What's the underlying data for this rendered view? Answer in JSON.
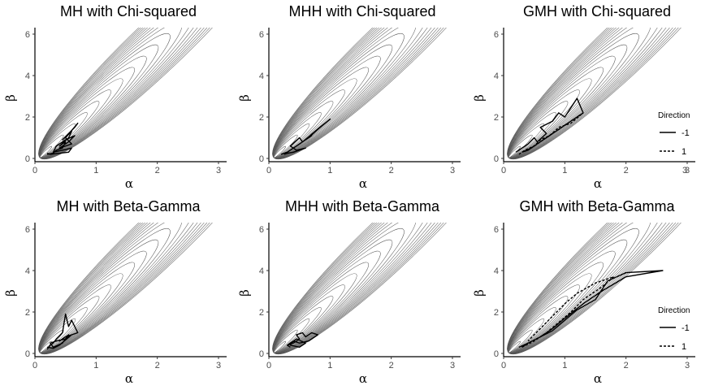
{
  "figure": {
    "legend_title": "Direction",
    "extra_label": "3"
  },
  "chart_data": [
    {
      "type": "line",
      "title": "MH with Chi-squared",
      "xlabel": "α",
      "ylabel": "β",
      "xlim": [
        0,
        3
      ],
      "ylim": [
        0,
        6
      ],
      "xticks": [
        "0",
        "1",
        "2",
        "3"
      ],
      "yticks": [
        "0",
        "2",
        "4",
        "6"
      ],
      "legend": null,
      "series": [
        {
          "direction": "-1",
          "style": "solid",
          "x": [
            0.2,
            0.3,
            0.35,
            0.45,
            0.5,
            0.4,
            0.55,
            0.6,
            0.45,
            0.65,
            0.7,
            0.5,
            0.6,
            0.4,
            0.55,
            0.65,
            0.5,
            0.35,
            0.3,
            0.45,
            0.6,
            0.55,
            0.25,
            0.2
          ],
          "y": [
            0.2,
            0.25,
            0.4,
            0.5,
            0.8,
            0.6,
            1.0,
            1.3,
            0.9,
            1.5,
            1.7,
            1.0,
            0.7,
            0.5,
            0.8,
            1.1,
            0.9,
            0.6,
            0.3,
            0.4,
            0.5,
            0.3,
            0.2,
            0.25
          ]
        }
      ]
    },
    {
      "type": "line",
      "title": "MHH with Chi-squared",
      "xlabel": "α",
      "ylabel": "β",
      "xlim": [
        0,
        3
      ],
      "ylim": [
        0,
        6
      ],
      "xticks": [
        "0",
        "1",
        "2",
        "3"
      ],
      "yticks": [
        "0",
        "2",
        "4",
        "6"
      ],
      "legend": null,
      "series": [
        {
          "direction": "-1",
          "style": "solid",
          "x": [
            0.2,
            0.3,
            0.4,
            0.5,
            0.45,
            0.6,
            0.7,
            0.65,
            0.8,
            1.0,
            0.75,
            0.55,
            0.5,
            0.35,
            0.45,
            0.6,
            0.4,
            0.3,
            0.25
          ],
          "y": [
            0.2,
            0.3,
            0.5,
            0.7,
            0.6,
            0.9,
            1.1,
            1.0,
            1.4,
            1.9,
            1.3,
            0.8,
            1.0,
            0.6,
            0.4,
            0.5,
            0.3,
            0.25,
            0.2
          ]
        }
      ]
    },
    {
      "type": "line",
      "title": "GMH with Chi-squared",
      "xlabel": "α",
      "ylabel": "β",
      "xlim": [
        0,
        3
      ],
      "ylim": [
        0,
        6
      ],
      "xticks": [
        "0",
        "1",
        "2",
        "3"
      ],
      "yticks": [
        "0",
        "2",
        "4",
        "6"
      ],
      "legend": {
        "title": "Direction",
        "entries": [
          "-1",
          "1"
        ]
      },
      "series": [
        {
          "direction": "-1",
          "style": "solid",
          "x": [
            0.2,
            0.3,
            0.4,
            0.5,
            0.55,
            0.7,
            0.6,
            0.8,
            0.9,
            1.0,
            1.2,
            1.3,
            1.1,
            0.9,
            0.7,
            0.5,
            0.4,
            0.3
          ],
          "y": [
            0.3,
            0.5,
            0.7,
            1.0,
            0.8,
            1.2,
            1.5,
            1.8,
            2.2,
            2.0,
            2.9,
            2.2,
            1.8,
            1.4,
            1.0,
            0.6,
            0.4,
            0.3
          ]
        },
        {
          "direction": "1",
          "style": "dashed",
          "x": [
            0.25,
            0.35,
            0.5,
            0.6,
            0.75,
            0.9,
            1.1,
            1.3,
            1.2,
            1.0,
            0.8,
            0.6,
            0.45,
            0.3
          ],
          "y": [
            0.2,
            0.4,
            0.6,
            0.9,
            1.1,
            1.5,
            1.7,
            2.2,
            2.0,
            1.6,
            1.2,
            0.8,
            0.5,
            0.3
          ]
        }
      ]
    },
    {
      "type": "line",
      "title": "MH with Beta-Gamma",
      "xlabel": "α",
      "ylabel": "β",
      "xlim": [
        0,
        3
      ],
      "ylim": [
        0,
        6
      ],
      "xticks": [
        "0",
        "1",
        "2",
        "3"
      ],
      "yticks": [
        "0",
        "2",
        "4",
        "6"
      ],
      "legend": null,
      "series": [
        {
          "direction": "-1",
          "style": "solid",
          "x": [
            0.2,
            0.25,
            0.3,
            0.35,
            0.45,
            0.5,
            0.55,
            0.6,
            0.7,
            0.5,
            0.4,
            0.55,
            0.45,
            0.3,
            0.25,
            0.35,
            0.5,
            0.6,
            0.4,
            0.3,
            0.2
          ],
          "y": [
            0.2,
            0.4,
            0.5,
            0.7,
            1.0,
            1.9,
            1.3,
            1.6,
            1.0,
            0.8,
            0.6,
            0.9,
            0.5,
            0.3,
            0.5,
            0.6,
            0.7,
            0.9,
            0.4,
            0.25,
            0.3
          ]
        }
      ]
    },
    {
      "type": "line",
      "title": "MHH with Beta-Gamma",
      "xlabel": "α",
      "ylabel": "β",
      "xlim": [
        0,
        3
      ],
      "ylim": [
        0,
        6
      ],
      "xticks": [
        "0",
        "1",
        "2",
        "3"
      ],
      "yticks": [
        "0",
        "2",
        "4",
        "6"
      ],
      "legend": null,
      "series": [
        {
          "direction": "-1",
          "style": "solid",
          "x": [
            0.3,
            0.4,
            0.5,
            0.45,
            0.55,
            0.6,
            0.7,
            0.8,
            0.65,
            0.5,
            0.4,
            0.35,
            0.5,
            0.6,
            0.45,
            0.3,
            0.35
          ],
          "y": [
            0.4,
            0.5,
            0.7,
            0.9,
            1.0,
            0.8,
            1.0,
            0.9,
            0.6,
            0.5,
            0.6,
            0.4,
            0.3,
            0.5,
            0.7,
            0.4,
            0.3
          ]
        }
      ]
    },
    {
      "type": "line",
      "title": "GMH with Beta-Gamma",
      "xlabel": "α",
      "ylabel": "β",
      "xlim": [
        0,
        3
      ],
      "ylim": [
        0,
        6
      ],
      "xticks": [
        "0",
        "1",
        "2",
        "3"
      ],
      "yticks": [
        "0",
        "2",
        "4",
        "6"
      ],
      "legend": {
        "title": "Direction",
        "entries": [
          "-1",
          "1"
        ]
      },
      "series": [
        {
          "direction": "-1",
          "style": "solid",
          "x": [
            0.25,
            0.4,
            0.6,
            0.8,
            1.0,
            1.2,
            1.5,
            1.7,
            2.0,
            2.6,
            2.0,
            1.6,
            1.3,
            1.0,
            0.8,
            0.6,
            0.4,
            0.3
          ],
          "y": [
            0.3,
            0.5,
            0.8,
            1.1,
            1.6,
            2.1,
            2.6,
            3.5,
            3.9,
            4.0,
            3.7,
            3.0,
            2.4,
            1.7,
            1.2,
            0.8,
            0.5,
            0.3
          ]
        },
        {
          "direction": "1",
          "style": "dashed",
          "x": [
            0.3,
            0.5,
            0.7,
            0.9,
            1.1,
            1.3,
            1.6,
            1.8,
            1.5,
            1.2,
            1.0,
            0.8,
            0.6,
            0.4
          ],
          "y": [
            0.3,
            0.6,
            1.0,
            1.5,
            2.0,
            2.6,
            3.2,
            3.7,
            3.4,
            2.9,
            2.4,
            1.8,
            1.2,
            0.6
          ]
        }
      ]
    }
  ]
}
